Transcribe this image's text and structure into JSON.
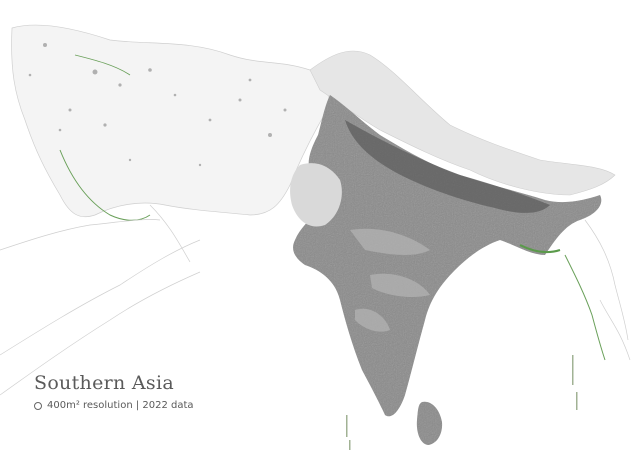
{
  "title": "Southern Asia",
  "subtitle": "400m² resolution | 2022 data",
  "icons": {
    "resolution_marker": "ring-icon"
  },
  "colors": {
    "background": "#ffffff",
    "dense_population": "#555555",
    "sparse_population": "#d8d8d8",
    "coastline_highlight": "#5a9a4a",
    "border_lines": "#cfcfcf"
  }
}
